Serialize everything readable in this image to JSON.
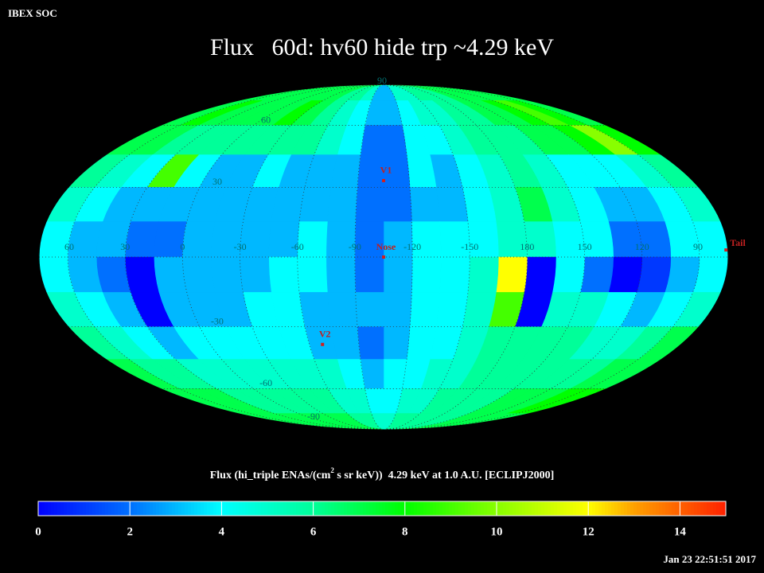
{
  "chart_data": {
    "type": "skymap",
    "corner_label": "IBEX SOC",
    "title": "Flux   60d: hv60 hide trp ~4.29 keV",
    "projection": "mollweide",
    "center_lon": 255,
    "lon_bins": [
      0,
      15,
      30,
      45,
      60,
      75,
      90,
      105,
      120,
      135,
      150,
      165,
      180,
      195,
      210,
      225,
      240,
      255,
      270,
      285,
      300,
      315,
      330,
      345,
      360
    ],
    "lat_bins": [
      90,
      75,
      60,
      45,
      30,
      15,
      0,
      -15,
      -30,
      -45,
      -60,
      -75,
      -90
    ],
    "values": [
      [
        7,
        7,
        7,
        7,
        7,
        7,
        7,
        7,
        7,
        7,
        7,
        6,
        6,
        6,
        5,
        5,
        3,
        3,
        5,
        6,
        6,
        7,
        7,
        7
      ],
      [
        7,
        7,
        7,
        8,
        7,
        7,
        8,
        9,
        8,
        7,
        7,
        6,
        6,
        5,
        5,
        4,
        3,
        3,
        4,
        5,
        6,
        7,
        8,
        7
      ],
      [
        6,
        6,
        6,
        7,
        7,
        8,
        10,
        8,
        7,
        7,
        6,
        6,
        6,
        5,
        4,
        4,
        2,
        2,
        4,
        5,
        6,
        6,
        6,
        6
      ],
      [
        4,
        9,
        4,
        5,
        6,
        6,
        5,
        4,
        4,
        4,
        5,
        6,
        5,
        4,
        3,
        4,
        2,
        2,
        3,
        3,
        3,
        4,
        3,
        3
      ],
      [
        3,
        3,
        3,
        4,
        5,
        5,
        4,
        3,
        3,
        4,
        5,
        7,
        5,
        4,
        3,
        3,
        2,
        2,
        3,
        3,
        3,
        3,
        3,
        3
      ],
      [
        2,
        2,
        3,
        3,
        4,
        4,
        4,
        2,
        2,
        4,
        4,
        5,
        5,
        4,
        4,
        4,
        3,
        2,
        3,
        4,
        3,
        3,
        3,
        3
      ],
      [
        3,
        0,
        2,
        3,
        4,
        4,
        3,
        1,
        0,
        2,
        4,
        0,
        12,
        5,
        4,
        4,
        3,
        2,
        3,
        4,
        4,
        3,
        3,
        3
      ],
      [
        3,
        0,
        3,
        4,
        5,
        5,
        4,
        3,
        4,
        5,
        5,
        0,
        9,
        5,
        4,
        4,
        3,
        3,
        3,
        3,
        4,
        4,
        3,
        3
      ],
      [
        4,
        3,
        4,
        5,
        6,
        7,
        6,
        5,
        5,
        6,
        6,
        6,
        6,
        5,
        4,
        4,
        3,
        2,
        3,
        3,
        4,
        4,
        4,
        4
      ],
      [
        5,
        5,
        6,
        6,
        7,
        7,
        7,
        6,
        6,
        6,
        6,
        6,
        6,
        5,
        5,
        4,
        4,
        3,
        4,
        5,
        5,
        5,
        5,
        5
      ],
      [
        6,
        6,
        7,
        7,
        7,
        8,
        8,
        7,
        7,
        7,
        6,
        6,
        6,
        6,
        5,
        5,
        4,
        4,
        5,
        5,
        6,
        6,
        6,
        6
      ],
      [
        7,
        7,
        7,
        7,
        7,
        7,
        7,
        7,
        7,
        7,
        6,
        6,
        6,
        6,
        6,
        6,
        5,
        5,
        6,
        6,
        7,
        7,
        7,
        7
      ]
    ],
    "lon_ticks": [
      60,
      30,
      0,
      -30,
      -60,
      -90,
      -120,
      -150,
      180,
      150,
      120,
      90
    ],
    "lat_ticks": [
      90,
      60,
      30,
      -30,
      -60,
      -90
    ],
    "markers": [
      {
        "label": "V1",
        "lon": 255,
        "lat": 33
      },
      {
        "label": "Nose",
        "lon": 255,
        "lat": 0
      },
      {
        "label": "V2",
        "lon": 292,
        "lat": -38
      },
      {
        "label": "Tail",
        "lon": 76,
        "lat": 3
      }
    ],
    "colorbar_label": {
      "before": "Flux (hi_triple ENAs/(cm",
      "sup": "2",
      "after": " s sr keV))  4.29 keV at 1.0 A.U. [ECLIPJ2000]"
    },
    "clim": [
      0,
      15
    ],
    "cticks": [
      0,
      2,
      4,
      6,
      8,
      10,
      12,
      14
    ],
    "colormap": [
      {
        "value": 0,
        "color": "#0000ff"
      },
      {
        "value": 2,
        "color": "#0070ff"
      },
      {
        "value": 4,
        "color": "#00ffff"
      },
      {
        "value": 6,
        "color": "#00ff99"
      },
      {
        "value": 8,
        "color": "#00ff00"
      },
      {
        "value": 10,
        "color": "#88ff00"
      },
      {
        "value": 12,
        "color": "#ffff00"
      },
      {
        "value": 13,
        "color": "#ffa000"
      },
      {
        "value": 15,
        "color": "#ff2000"
      }
    ],
    "timestamp": "Jan 23 22:51:51 2017"
  }
}
